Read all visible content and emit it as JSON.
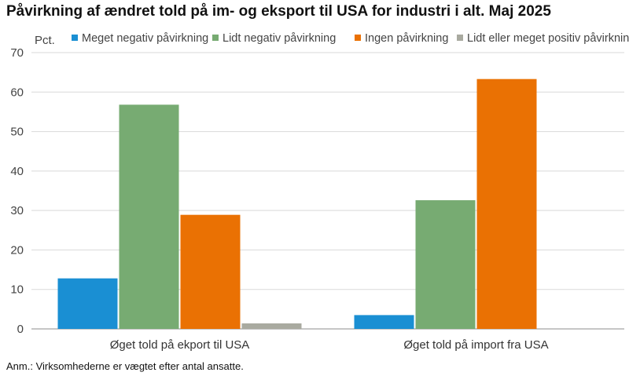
{
  "title": "Påvirkning af ændret told på im- og eksport til USA for industri i alt. Maj 2025",
  "note": "Anm.: Virksomhederne er vægtet efter antal ansatte.",
  "chart_data": {
    "type": "bar",
    "ylabel": "Pct.",
    "ylim": [
      0,
      70
    ],
    "yticks": [
      0,
      10,
      20,
      30,
      40,
      50,
      60,
      70
    ],
    "grid": true,
    "legend_position": "top",
    "categories": [
      "Øget told på ekport til USA",
      "Øget told på import fra USA"
    ],
    "series": [
      {
        "name": "Meget negativ påvirkning",
        "color": "#1A8FD3",
        "values": [
          12.8,
          3.5
        ]
      },
      {
        "name": "Lidt negativ påvirkning",
        "color": "#77AB72",
        "values": [
          56.8,
          32.6
        ]
      },
      {
        "name": "Ingen påvirkning",
        "color": "#EA7103",
        "values": [
          28.9,
          63.3
        ]
      },
      {
        "name": "Lidt eller meget positiv påvirkning",
        "color": "#A9AAA0",
        "values": [
          1.4,
          0.0
        ]
      }
    ]
  }
}
